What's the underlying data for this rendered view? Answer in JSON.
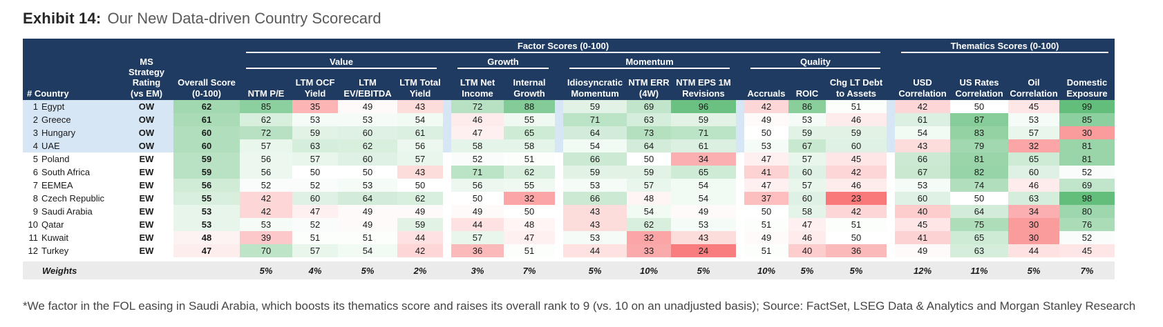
{
  "title": {
    "exhibit": "Exhibit 14:",
    "text": "Our New Data-driven Country Scorecard"
  },
  "colors": {
    "header_bg": "#1F3B61",
    "row_highlight": "#D6E6F4",
    "heat_green": "#63BE7B",
    "heat_red": "#F8696B",
    "heat_mid": "#FFFFFF",
    "weights_bg": "#EBEBEB"
  },
  "header": {
    "country": "# Country",
    "rating": "MS\nStrategy\nRating\n(vs EM)",
    "overall": "Overall Score\n(0-100)",
    "factor_group": "Factor Scores (0-100)",
    "thematics_group": "Thematics Scores (0-100)",
    "subgroups": [
      "Value",
      "Growth",
      "Momentum",
      "Quality"
    ]
  },
  "chart_data": {
    "type": "heatmap",
    "title": "Our New Data-driven Country Scorecard",
    "value_range": [
      0,
      100
    ],
    "legend_position": "none",
    "columns": [
      "NTM P/E",
      "LTM OCF\nYield",
      "LTM\nEV/EBITDA",
      "LTM Total\nYield",
      "LTM Net\nIncome",
      "Internal\nGrowth",
      "Idiosyncratic\nMomentum",
      "NTM ERR\n(4W)",
      "NTM EPS 1M\nRevisions",
      "Accruals",
      "ROIC",
      "Chg LT Debt\nto Assets",
      "USD\nCorrelation",
      "US Rates\nCorrelation",
      "Oil\nCorrelation",
      "Domestic\nExposure"
    ],
    "group_spans": {
      "Value": 4,
      "Growth": 2,
      "Momentum": 3,
      "Quality": 3,
      "Thematics": 4
    },
    "rows": [
      {
        "rank": 1,
        "country": "Egypt",
        "rating": "OW",
        "overall": 62,
        "scores": [
          85,
          35,
          49,
          43,
          72,
          88,
          59,
          69,
          96,
          42,
          86,
          51,
          42,
          50,
          45,
          99
        ]
      },
      {
        "rank": 2,
        "country": "Greece",
        "rating": "OW",
        "overall": 61,
        "scores": [
          62,
          53,
          53,
          54,
          46,
          55,
          71,
          63,
          59,
          49,
          53,
          46,
          61,
          87,
          53,
          85
        ]
      },
      {
        "rank": 3,
        "country": "Hungary",
        "rating": "OW",
        "overall": 60,
        "scores": [
          72,
          59,
          60,
          61,
          47,
          65,
          64,
          73,
          71,
          50,
          59,
          59,
          54,
          83,
          57,
          30
        ]
      },
      {
        "rank": 4,
        "country": "UAE",
        "rating": "OW",
        "overall": 60,
        "scores": [
          57,
          63,
          62,
          56,
          58,
          58,
          54,
          64,
          61,
          53,
          67,
          60,
          43,
          79,
          32,
          81
        ]
      },
      {
        "rank": 5,
        "country": "Poland",
        "rating": "EW",
        "overall": 59,
        "scores": [
          56,
          57,
          60,
          57,
          52,
          51,
          66,
          50,
          34,
          47,
          57,
          45,
          66,
          81,
          65,
          81
        ]
      },
      {
        "rank": 6,
        "country": "South Africa",
        "rating": "EW",
        "overall": 59,
        "scores": [
          56,
          50,
          50,
          43,
          71,
          62,
          59,
          59,
          65,
          41,
          60,
          42,
          67,
          82,
          60,
          52
        ]
      },
      {
        "rank": 7,
        "country": "EEMEA",
        "rating": "EW",
        "overall": 56,
        "scores": [
          52,
          52,
          53,
          50,
          56,
          55,
          53,
          57,
          54,
          47,
          57,
          46,
          53,
          74,
          46,
          69
        ]
      },
      {
        "rank": 8,
        "country": "Czech Republic",
        "rating": "EW",
        "overall": 55,
        "scores": [
          42,
          60,
          64,
          62,
          50,
          32,
          66,
          48,
          54,
          37,
          60,
          23,
          60,
          50,
          63,
          98
        ]
      },
      {
        "rank": 9,
        "country": "Saudi Arabia",
        "rating": "EW",
        "overall": 53,
        "scores": [
          42,
          47,
          49,
          49,
          49,
          50,
          43,
          54,
          49,
          50,
          58,
          42,
          40,
          64,
          34,
          80
        ]
      },
      {
        "rank": 10,
        "country": "Qatar",
        "rating": "EW",
        "overall": 53,
        "scores": [
          53,
          52,
          49,
          59,
          44,
          48,
          43,
          62,
          53,
          51,
          47,
          51,
          45,
          75,
          30,
          76
        ]
      },
      {
        "rank": 11,
        "country": "Kuwait",
        "rating": "EW",
        "overall": 48,
        "scores": [
          39,
          51,
          51,
          44,
          57,
          47,
          53,
          32,
          43,
          49,
          46,
          50,
          41,
          65,
          30,
          52
        ]
      },
      {
        "rank": 12,
        "country": "Turkey",
        "rating": "EW",
        "overall": 47,
        "scores": [
          70,
          57,
          54,
          42,
          36,
          51,
          44,
          33,
          24,
          51,
          40,
          36,
          49,
          63,
          44,
          45
        ]
      }
    ],
    "weights_label": "Weights",
    "weights": [
      "5%",
      "4%",
      "5%",
      "2%",
      "3%",
      "7%",
      "5%",
      "10%",
      "5%",
      "10%",
      "5%",
      "5%",
      "12%",
      "11%",
      "5%",
      "7%"
    ],
    "highlighted_rows": 4
  },
  "footnote": "*We factor in the FOL easing in Saudi Arabia, which boosts its thematics score and raises its overall rank to 9 (vs. 10 on an unadjusted basis); Source: FactSet, LSEG Data & Analytics and Morgan Stanley Research"
}
